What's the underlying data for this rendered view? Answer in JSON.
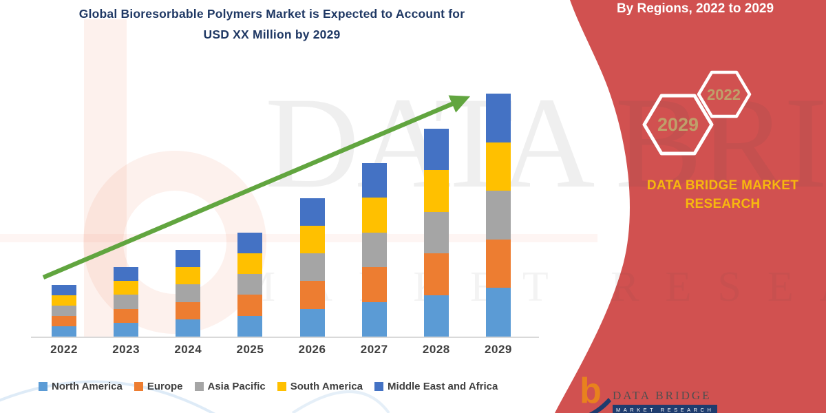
{
  "header": {
    "title_line1": "Global Bioresorbable Polymers Market is Expected to Account for",
    "title_line2": "USD XX Million by 2029",
    "title_color": "#1F3864"
  },
  "right_panel": {
    "heading": "By Regions, 2022 to 2029",
    "panel_color": "#D15150",
    "hexagons": [
      {
        "label": "2029"
      },
      {
        "label": "2022"
      }
    ],
    "hexagon_text_color": "#BFA06A",
    "brand_line1": "DATA BRIDGE MARKET",
    "brand_line2": "RESEARCH",
    "brand_color": "#F7B80E"
  },
  "watermark": {
    "line1": "DATA BRIDGE",
    "line2": "MARKET RESEARCH"
  },
  "footer_logo": {
    "monogram": "b",
    "name": "DATA BRIDGE",
    "subtitle": "MARKET RESEARCH"
  },
  "chart_data": {
    "type": "bar",
    "stacked": true,
    "title": "Global Bioresorbable Polymers Market, By Regions, 2022 to 2029",
    "categories": [
      "2022",
      "2023",
      "2024",
      "2025",
      "2026",
      "2027",
      "2028",
      "2029"
    ],
    "series": [
      {
        "name": "North America",
        "color": "#5B9BD5",
        "values": [
          3,
          4,
          5,
          6,
          8,
          10,
          12,
          14
        ]
      },
      {
        "name": "Europe",
        "color": "#ED7D31",
        "values": [
          3,
          4,
          5,
          6,
          8,
          10,
          12,
          14
        ]
      },
      {
        "name": "Asia Pacific",
        "color": "#A5A5A5",
        "values": [
          3,
          4,
          5,
          6,
          8,
          10,
          12,
          14
        ]
      },
      {
        "name": "South America",
        "color": "#FFC000",
        "values": [
          3,
          4,
          5,
          6,
          8,
          10,
          12,
          14
        ]
      },
      {
        "name": "Middle East and Africa",
        "color": "#4472C4",
        "values": [
          3,
          4,
          5,
          6,
          8,
          10,
          12,
          14
        ]
      }
    ],
    "stack_totals": [
      15,
      20,
      25,
      30,
      40,
      50,
      60,
      70
    ],
    "value_unit_label": "USD XX Million",
    "value_axis_visible": false,
    "data_labels_visible": false,
    "ylim": [
      0,
      75
    ],
    "gridlines": false,
    "legend_position": "bottom",
    "trend_arrow": {
      "present": true,
      "color": "#61A53F",
      "direction": "up-right"
    }
  }
}
